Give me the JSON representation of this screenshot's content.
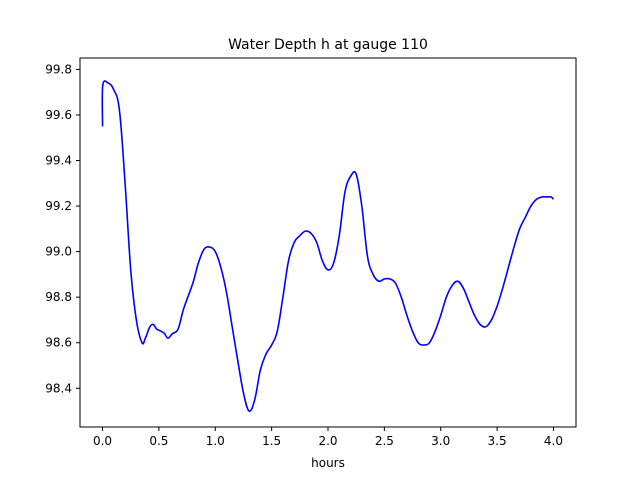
{
  "chart_data": {
    "type": "line",
    "title": "Water Depth h at gauge 110",
    "xlabel": "hours",
    "ylabel": "",
    "xlim": [
      -0.2,
      4.2
    ],
    "ylim": [
      98.23,
      99.85
    ],
    "xticks": [
      0.0,
      0.5,
      1.0,
      1.5,
      2.0,
      2.5,
      3.0,
      3.5,
      4.0
    ],
    "xtick_labels": [
      "0.0",
      "0.5",
      "1.0",
      "1.5",
      "2.0",
      "2.5",
      "3.0",
      "3.5",
      "4.0"
    ],
    "yticks": [
      98.4,
      98.6,
      98.8,
      99.0,
      99.2,
      99.4,
      99.6,
      99.8
    ],
    "ytick_labels": [
      "98.4",
      "98.6",
      "98.8",
      "99.0",
      "99.2",
      "99.4",
      "99.6",
      "99.8"
    ],
    "grid": false,
    "series": [
      {
        "color": "#0000ff",
        "x": [
          0.0,
          0.002,
          0.05,
          0.1,
          0.15,
          0.2,
          0.25,
          0.3,
          0.35,
          0.38,
          0.42,
          0.45,
          0.48,
          0.52,
          0.55,
          0.58,
          0.62,
          0.67,
          0.72,
          0.8,
          0.85,
          0.9,
          0.95,
          1.0,
          1.05,
          1.1,
          1.15,
          1.2,
          1.25,
          1.3,
          1.35,
          1.4,
          1.45,
          1.5,
          1.55,
          1.6,
          1.65,
          1.7,
          1.75,
          1.8,
          1.85,
          1.9,
          1.95,
          2.0,
          2.05,
          2.1,
          2.15,
          2.2,
          2.25,
          2.3,
          2.35,
          2.4,
          2.45,
          2.5,
          2.55,
          2.6,
          2.65,
          2.7,
          2.75,
          2.8,
          2.85,
          2.9,
          2.95,
          3.0,
          3.05,
          3.1,
          3.15,
          3.2,
          3.25,
          3.3,
          3.35,
          3.4,
          3.45,
          3.5,
          3.55,
          3.6,
          3.65,
          3.7,
          3.75,
          3.8,
          3.85,
          3.9,
          3.95,
          3.98,
          4.0
        ],
        "y": [
          99.55,
          99.73,
          99.74,
          99.71,
          99.62,
          99.3,
          98.92,
          98.7,
          98.6,
          98.62,
          98.67,
          98.68,
          98.66,
          98.65,
          98.64,
          98.62,
          98.64,
          98.66,
          98.75,
          98.86,
          98.95,
          99.01,
          99.02,
          99.0,
          98.93,
          98.82,
          98.67,
          98.52,
          98.38,
          98.3,
          98.35,
          98.48,
          98.55,
          98.59,
          98.65,
          98.8,
          98.96,
          99.04,
          99.07,
          99.09,
          99.08,
          99.04,
          98.96,
          98.92,
          98.95,
          99.07,
          99.26,
          99.33,
          99.34,
          99.2,
          98.98,
          98.9,
          98.87,
          98.88,
          98.88,
          98.86,
          98.8,
          98.72,
          98.65,
          98.6,
          98.59,
          98.6,
          98.65,
          98.72,
          98.8,
          98.85,
          98.87,
          98.84,
          98.78,
          98.72,
          98.68,
          98.67,
          98.7,
          98.76,
          98.84,
          98.93,
          99.02,
          99.1,
          99.15,
          99.2,
          99.23,
          99.24,
          99.24,
          99.24,
          99.23
        ]
      }
    ]
  }
}
